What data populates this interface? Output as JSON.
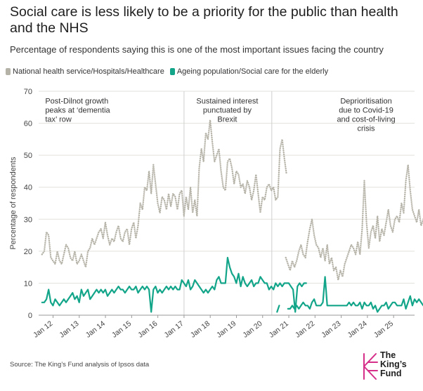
{
  "title": "Social care is less likely to be a priority for the public than health and the NHS",
  "subtitle": "Percentage of respondents saying this is one of the most important issues facing the country",
  "source": "Source: The King’s Fund analysis of Ipsos data",
  "logo": {
    "line1": "The",
    "line2": "King’s",
    "line3": "Fund"
  },
  "chart_data": {
    "type": "line",
    "ylabel": "Percentage of respondents",
    "ylim": [
      0,
      70
    ],
    "yticks": [
      0,
      10,
      20,
      30,
      40,
      50,
      60,
      70
    ],
    "xlim": [
      2011.45,
      2025.8
    ],
    "xticks": [
      {
        "label": "Jan 12",
        "x": 2012.0
      },
      {
        "label": "Jan 13",
        "x": 2013.0
      },
      {
        "label": "Jan 14",
        "x": 2014.0
      },
      {
        "label": "Jan 15",
        "x": 2015.0
      },
      {
        "label": "Jan 16",
        "x": 2016.0
      },
      {
        "label": "Jan 17",
        "x": 2017.0
      },
      {
        "label": "Jan 18",
        "x": 2018.0
      },
      {
        "label": "Jan 19",
        "x": 2019.0
      },
      {
        "label": "Jan 20",
        "x": 2020.0
      },
      {
        "label": "Jan 21",
        "x": 2021.0
      },
      {
        "label": "Jan 22",
        "x": 2022.0
      },
      {
        "label": "Jan 23",
        "x": 2023.0
      },
      {
        "label": "Jan 24",
        "x": 2024.0
      },
      {
        "label": "Jan 25",
        "x": 2025.0
      }
    ],
    "grid": true,
    "legend_position": "top-left",
    "period_boundaries": [
      2017.0,
      2020.35
    ],
    "annotations": [
      {
        "lines": [
          "Post-Dilnot growth",
          "peaks at ‘dementia",
          "tax’ row"
        ],
        "x": 2011.7,
        "y": 67,
        "align": "left"
      },
      {
        "lines": [
          "Sustained interest",
          "punctuated by",
          "Brexit"
        ],
        "x": 2018.65,
        "y": 67,
        "align": "middle"
      },
      {
        "lines": [
          "Deprioritisation",
          "due to Covid-19",
          "and cost-of-living",
          "crisis"
        ],
        "x": 2023.95,
        "y": 67,
        "align": "middle"
      }
    ],
    "colors": {
      "health": "#b5b2a7",
      "social_care": "#13a589",
      "grid": "#e2e1dc",
      "boundary": "#cfcfcf"
    },
    "series": [
      {
        "name": "National health service/Hospitals/Healthcare",
        "style": "dotted",
        "segments": [
          {
            "start": 2011.58,
            "step": 0.08333,
            "values": [
              19,
              20,
              26,
              25,
              18,
              17,
              16,
              20,
              17,
              16,
              19,
              22,
              21,
              18,
              17,
              20,
              16,
              17,
              19,
              17,
              15,
              20,
              21,
              24,
              22,
              24,
              26,
              27,
              24,
              29,
              25,
              22,
              24,
              23,
              26,
              28,
              24,
              23,
              26,
              27,
              22,
              27,
              29,
              24,
              28,
              35,
              33,
              40,
              39,
              45,
              38,
              47,
              41,
              35,
              32,
              37,
              36,
              33,
              38,
              34,
              38,
              37,
              33,
              38,
              39,
              31,
              37,
              33,
              40,
              32,
              36,
              31,
              46,
              52,
              48,
              57,
              55,
              61,
              54,
              48,
              50,
              52,
              45,
              40,
              39,
              48,
              49,
              46,
              41,
              45,
              44,
              40,
              41,
              38,
              42,
              40,
              36,
              39,
              44,
              38,
              32,
              37,
              36,
              40,
              41,
              39,
              40,
              36,
              37,
              52,
              55,
              49,
              44
            ]
          },
          {
            "start": 2020.55,
            "step": 0.08333,
            "values": [
              21,
              null,
              null,
              null,
              18,
              16,
              14,
              17,
              15,
              17,
              20,
              22,
              19,
              18,
              23,
              27,
              30,
              25,
              22,
              21,
              18,
              21,
              17,
              22,
              16,
              18,
              14,
              15,
              11,
              14,
              12,
              16,
              18,
              20,
              22,
              21,
              19,
              23,
              19,
              27,
              42,
              29,
              21,
              26,
              28,
              24,
              31,
              23,
              27,
              25,
              29,
              33,
              28,
              26,
              30,
              31,
              29,
              35,
              32,
              42,
              47,
              39,
              33,
              31,
              29,
              33,
              28,
              30,
              32,
              27,
              26,
              34,
              31,
              34
            ]
          }
        ]
      },
      {
        "name": "Ageing population/Social care for the elderly",
        "style": "solid",
        "segments": [
          {
            "start": 2011.58,
            "step": 0.08333,
            "values": [
              4,
              4,
              5,
              8,
              4,
              3,
              5,
              4,
              3,
              4,
              5,
              4,
              5,
              6,
              7,
              5,
              6,
              4,
              8,
              6,
              7,
              8,
              5,
              6,
              7,
              8,
              7,
              8,
              7,
              8,
              6,
              7,
              8,
              7,
              8,
              9,
              8,
              8,
              7,
              8,
              9,
              8,
              8,
              9,
              7,
              8,
              9,
              8,
              9,
              8,
              1,
              8,
              9,
              7,
              8,
              7,
              8,
              9,
              8,
              9,
              8,
              9,
              8,
              8,
              11,
              10,
              9,
              11,
              8,
              9,
              11,
              10,
              9,
              8,
              7,
              8,
              7,
              8,
              9,
              8,
              11,
              12,
              10,
              10,
              10,
              18,
              15,
              13,
              12,
              10,
              13,
              9,
              12,
              10,
              9,
              10,
              11,
              9,
              10,
              10,
              12,
              11,
              10,
              10,
              8,
              9,
              8,
              10,
              9,
              10,
              9,
              10,
              10,
              10,
              9,
              8,
              1,
              9,
              10,
              9,
              10,
              10
            ]
          },
          {
            "start": 2020.55,
            "step": 0.08333,
            "values": [
              1,
              3,
              null,
              null,
              null,
              2,
              2,
              3,
              2,
              3,
              2,
              3,
              4,
              3,
              3,
              2,
              4,
              5,
              3,
              3,
              3,
              4,
              12,
              3,
              3,
              3,
              3,
              3,
              3,
              3,
              3,
              3,
              3,
              4,
              3,
              4,
              3,
              3,
              4,
              2,
              4,
              3,
              3,
              4,
              2,
              3,
              1,
              2,
              3,
              3,
              4,
              2,
              3,
              4,
              4,
              3,
              3,
              3,
              5,
              2,
              4,
              6,
              3,
              5,
              4,
              5,
              4,
              3,
              4,
              4,
              4,
              5,
              2,
              4,
              4
            ]
          }
        ]
      }
    ]
  }
}
